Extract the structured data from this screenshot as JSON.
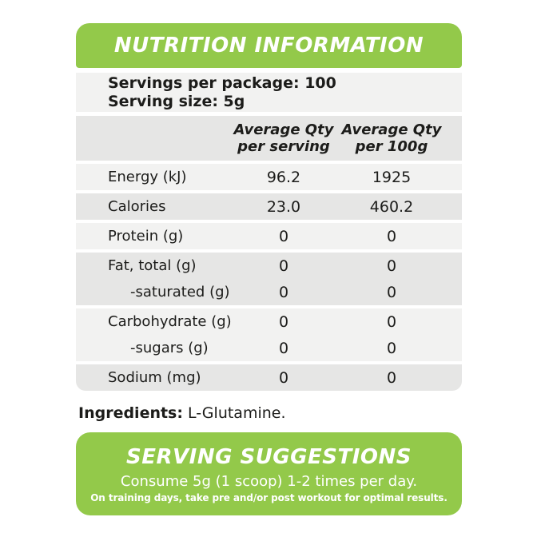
{
  "colors": {
    "green": "#93c94a",
    "band_light": "#f2f2f1",
    "band_dark": "#e6e6e5",
    "text": "#1c1c1a"
  },
  "banner": {
    "title": "NUTRITION INFORMATION"
  },
  "serving_info": {
    "servings_per_package": "Servings per package: 100",
    "serving_size": "Serving size: 5g"
  },
  "table": {
    "column_headers": [
      {
        "line1": "Average Qty",
        "line2": "per serving"
      },
      {
        "line1": "Average Qty",
        "line2": "per 100g"
      }
    ],
    "groups": [
      {
        "rows": [
          {
            "label": "Energy (kJ)",
            "per_serving": "96.2",
            "per_100g": "1925"
          }
        ]
      },
      {
        "rows": [
          {
            "label": "Calories",
            "per_serving": "23.0",
            "per_100g": "460.2"
          }
        ]
      },
      {
        "rows": [
          {
            "label": "Protein (g)",
            "per_serving": "0",
            "per_100g": "0"
          }
        ]
      },
      {
        "rows": [
          {
            "label": "Fat, total (g)",
            "per_serving": "0",
            "per_100g": "0"
          },
          {
            "label": "-saturated (g)",
            "per_serving": "0",
            "per_100g": "0"
          }
        ]
      },
      {
        "rows": [
          {
            "label": "Carbohydrate (g)",
            "per_serving": "0",
            "per_100g": "0"
          },
          {
            "label": "-sugars (g)",
            "per_serving": "0",
            "per_100g": "0"
          }
        ]
      },
      {
        "rows": [
          {
            "label": "Sodium (mg)",
            "per_serving": "0",
            "per_100g": "0"
          }
        ]
      }
    ]
  },
  "ingredients": {
    "label": "Ingredients:",
    "value": " L-Glutamine."
  },
  "serving_suggestions": {
    "title": "SERVING SUGGESTIONS",
    "line1": "Consume 5g (1 scoop) 1-2 times per day.",
    "line2": "On training days, take pre and/or post workout for optimal results."
  }
}
